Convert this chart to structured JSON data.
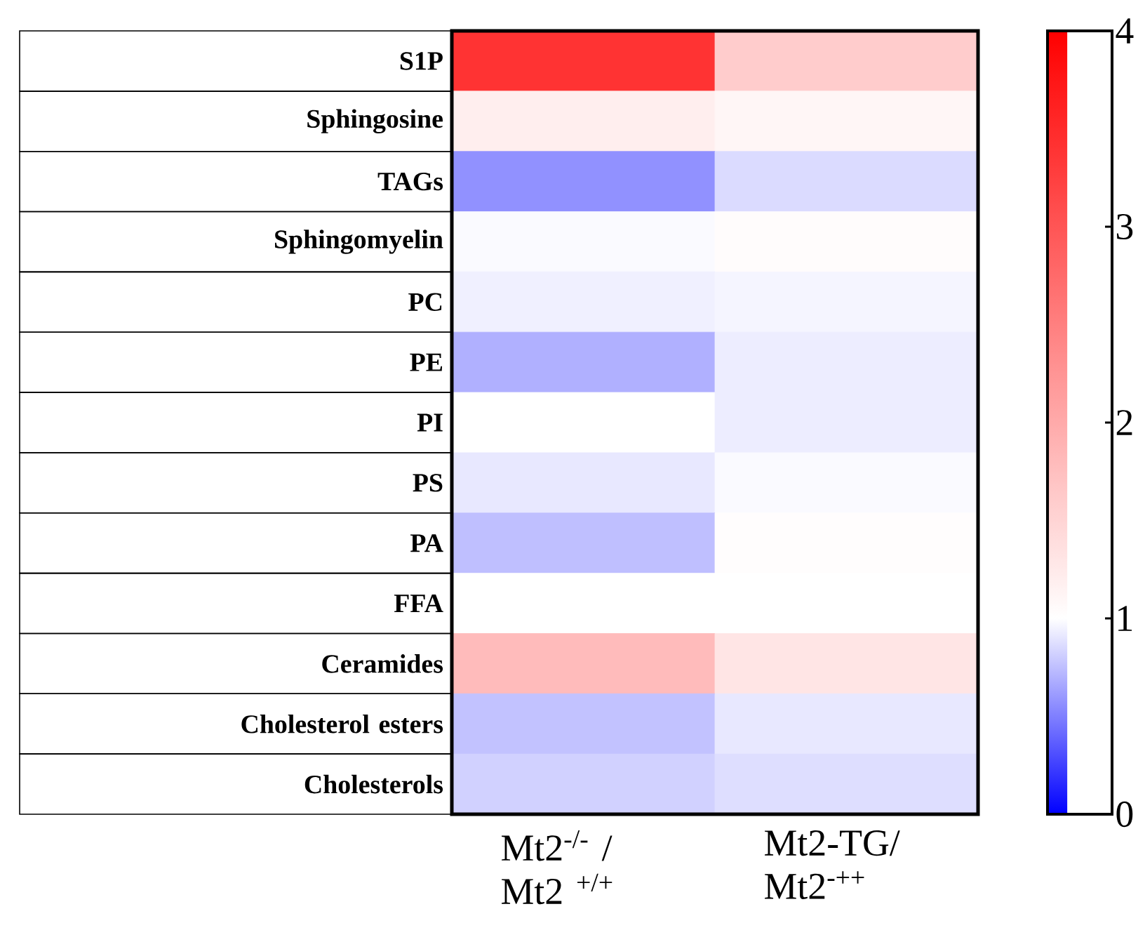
{
  "chart_data": {
    "type": "heatmap",
    "categories": [
      "Mt2$^{-/-}$ / Mt2 $^{+/+}$",
      "Mt2-TG/ Mt2$^{-++}$"
    ],
    "y_categories": [
      "S1P",
      "Sphingosine",
      "TAGs",
      "Sphingomyelin",
      "PC",
      "PE",
      "PI",
      "PS",
      "PA",
      "FFA",
      "Ceramides",
      "Cholesterol esters",
      "Cholesterols"
    ],
    "cells": [
      [
        3.4,
        1.6
      ],
      [
        1.2,
        1.1
      ],
      [
        0.57,
        0.86
      ],
      [
        0.98,
        1.03
      ],
      [
        0.94,
        0.96
      ],
      [
        0.69,
        0.93
      ],
      [
        1.0,
        0.93
      ],
      [
        0.91,
        0.98
      ],
      [
        0.75,
        1.02
      ],
      [
        1.0,
        1.0
      ],
      [
        1.8,
        1.3
      ],
      [
        0.76,
        0.91
      ],
      [
        0.82,
        0.87
      ]
    ],
    "clim": [
      0,
      4
    ],
    "cticks": [
      0,
      1,
      2,
      3,
      4
    ]
  }
}
